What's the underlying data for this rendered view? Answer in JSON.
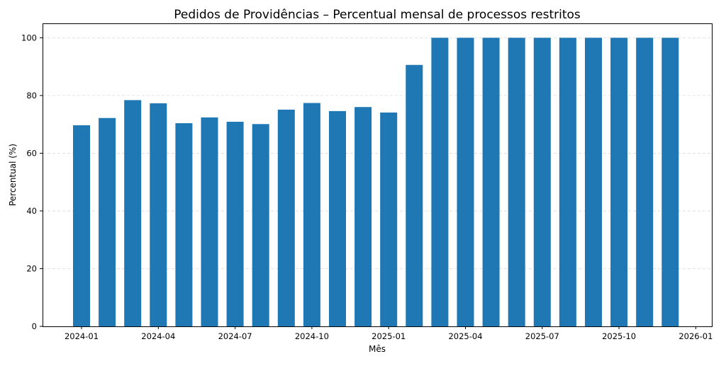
{
  "chart_data": {
    "type": "bar",
    "title": "Pedidos de Providências – Percentual mensal de processos restritos",
    "xlabel": "Mês",
    "ylabel": "Percentual (%)",
    "ylim": [
      0,
      105
    ],
    "yticks": [
      0,
      20,
      40,
      60,
      80,
      100
    ],
    "grid": "y-dashed",
    "bar_color": "#1f77b4",
    "x": [
      "2024-01",
      "2024-02",
      "2024-03",
      "2024-04",
      "2024-05",
      "2024-06",
      "2024-07",
      "2024-08",
      "2024-09",
      "2024-10",
      "2024-11",
      "2024-12",
      "2025-01",
      "2025-02",
      "2025-03",
      "2025-04",
      "2025-05",
      "2025-06",
      "2025-07",
      "2025-08",
      "2025-09",
      "2025-10",
      "2025-11",
      "2025-12"
    ],
    "values": [
      69.7,
      72.2,
      78.4,
      77.3,
      70.4,
      72.4,
      70.9,
      70.1,
      75.1,
      77.4,
      74.6,
      76.0,
      74.1,
      90.6,
      100,
      100,
      100,
      100,
      100,
      100,
      100,
      100,
      100,
      100
    ],
    "xticks": [
      "2024-01",
      "2024-04",
      "2024-07",
      "2024-10",
      "2025-01",
      "2025-04",
      "2025-07",
      "2025-10",
      "2026-01"
    ]
  }
}
